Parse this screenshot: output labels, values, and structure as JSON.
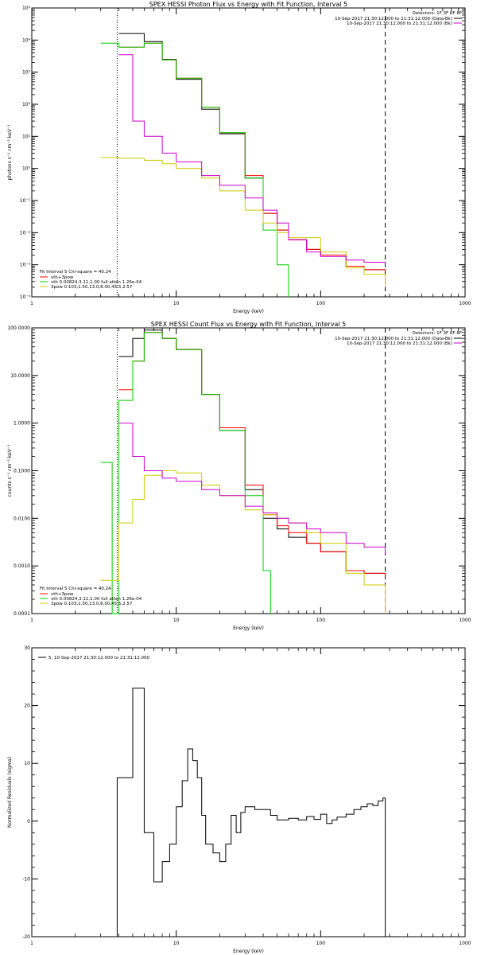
{
  "chart_data": [
    {
      "type": "line",
      "title": "SPEX HESSI Photon Flux vs Energy with Fit Function, Interval 5",
      "xlabel": "Energy (keV)",
      "ylabel": "photons s⁻¹ cm⁻² keV⁻¹",
      "xscale": "log",
      "yscale": "log",
      "xlim": [
        1,
        1000
      ],
      "ylim": [
        0.0001,
        100000
      ],
      "x_tick_labels": [
        "1",
        "10",
        "100",
        "1000"
      ],
      "y_ticks": [
        0.0001,
        0.001,
        0.01,
        0.1,
        1,
        10,
        100,
        1000,
        10000,
        100000
      ],
      "y_tick_labels": [
        "10⁻⁴",
        "10⁻³",
        "10⁻²",
        "10⁻¹",
        "10⁰",
        "10¹",
        "10²",
        "10³",
        "10⁴",
        "10⁵"
      ],
      "vlines": [
        {
          "x": 3.9,
          "style": "dotted"
        },
        {
          "x": 280,
          "style": "dashed"
        }
      ],
      "legend_top": {
        "header": "Detectors: 1F 3F 6F 8F",
        "entries": [
          {
            "label": "10-Sep-2017 21:30:12.000 to 21:31:12.000 (Data-Bk)",
            "color": "#000000"
          },
          {
            "label": "10-Sep-2017 21:30:12.000 to 21:31:12.000 (Bk)",
            "color": "#cc00cc"
          }
        ]
      },
      "legend_bottom": {
        "header": "Fit Interval 5   Chi-square = 40.24",
        "entries": [
          {
            "label": "vth+3pow",
            "color": "#ff0000"
          },
          {
            "label": "vth 0.00824,3.11,1.00  full atten 1.26e-04",
            "color": "#00cc00"
          },
          {
            "label": "3pow 0.103,1.50,13.0,8.00,45.5,2.57",
            "color": "#cccc00"
          }
        ]
      },
      "series": [
        {
          "color": "#000000",
          "points": [
            [
              4,
              16000
            ],
            [
              6,
              9000
            ],
            [
              8,
              2500
            ],
            [
              10,
              600
            ],
            [
              15,
              70
            ],
            [
              20,
              12
            ],
            [
              30,
              0.5
            ],
            [
              40,
              0.04
            ],
            [
              50,
              0.012
            ],
            [
              60,
              0.006
            ],
            [
              80,
              0.003
            ],
            [
              100,
              0.002
            ],
            [
              150,
              0.0009
            ],
            [
              200,
              0.0007
            ],
            [
              280,
              0.0006
            ]
          ]
        },
        {
          "color": "#ff0000",
          "points": [
            [
              4,
              6000
            ],
            [
              6,
              8000
            ],
            [
              8,
              2400
            ],
            [
              10,
              650
            ],
            [
              15,
              80
            ],
            [
              20,
              13
            ],
            [
              30,
              0.6
            ],
            [
              40,
              0.04
            ],
            [
              50,
              0.012
            ],
            [
              60,
              0.006
            ],
            [
              80,
              0.003
            ],
            [
              100,
              0.002
            ],
            [
              150,
              0.0009
            ],
            [
              200,
              0.0007
            ],
            [
              280,
              0.0006
            ]
          ]
        },
        {
          "color": "#00cc00",
          "points": [
            [
              3,
              8000
            ],
            [
              4,
              6000
            ],
            [
              6,
              8000
            ],
            [
              8,
              2400
            ],
            [
              10,
              650
            ],
            [
              15,
              80
            ],
            [
              20,
              13
            ],
            [
              30,
              0.5
            ],
            [
              40,
              0.012
            ],
            [
              50,
              0.001
            ],
            [
              60,
              0.0001
            ]
          ]
        },
        {
          "color": "#cccc00",
          "points": [
            [
              3,
              2.2
            ],
            [
              4,
              2.1
            ],
            [
              6,
              1.8
            ],
            [
              8,
              1.4
            ],
            [
              10,
              1.0
            ],
            [
              15,
              0.5
            ],
            [
              20,
              0.2
            ],
            [
              30,
              0.05
            ],
            [
              40,
              0.02
            ],
            [
              50,
              0.01
            ],
            [
              60,
              0.007
            ],
            [
              100,
              0.0025
            ],
            [
              150,
              0.0008
            ],
            [
              200,
              0.0005
            ],
            [
              280,
              0.0002
            ]
          ]
        },
        {
          "color": "#cc00cc",
          "points": [
            [
              4,
              3500
            ],
            [
              5,
              30
            ],
            [
              6,
              10
            ],
            [
              8,
              3
            ],
            [
              10,
              1.6
            ],
            [
              15,
              0.6
            ],
            [
              20,
              0.3
            ],
            [
              30,
              0.12
            ],
            [
              40,
              0.05
            ],
            [
              50,
              0.02
            ],
            [
              60,
              0.006
            ],
            [
              80,
              0.0025
            ],
            [
              100,
              0.0018
            ],
            [
              150,
              0.0014
            ],
            [
              200,
              0.0012
            ],
            [
              280,
              0.001
            ]
          ]
        }
      ]
    },
    {
      "type": "line",
      "title": "SPEX HESSI Count Flux vs Energy with Fit Function, Interval 5",
      "xlabel": "Energy (keV)",
      "ylabel": "counts s⁻¹ cm⁻² keV⁻¹",
      "xscale": "log",
      "yscale": "log",
      "xlim": [
        1,
        1000
      ],
      "ylim": [
        0.0001,
        100
      ],
      "x_tick_labels": [
        "1",
        "10",
        "100",
        "1000"
      ],
      "y_ticks": [
        0.0001,
        0.001,
        0.01,
        0.1,
        1,
        10,
        100
      ],
      "y_tick_labels": [
        "0.0001",
        "0.0010",
        "0.0100",
        "0.1000",
        "1.0000",
        "10.0000",
        "100.0000"
      ],
      "vlines": [
        {
          "x": 3.9,
          "style": "dotted"
        },
        {
          "x": 280,
          "style": "dashed"
        }
      ],
      "legend_top": {
        "header": "Detectors: 1F 3F 6F 8F",
        "entries": [
          {
            "label": "10-Sep-2017 21:30:12.000 to 21:31:12.000 (Data-Bk)",
            "color": "#000000"
          },
          {
            "label": "10-Sep-2017 21:30:12.000 to 21:31:12.000 (Bk)",
            "color": "#cc00cc"
          }
        ]
      },
      "legend_bottom": {
        "header": "Fit Interval 5   Chi-square = 40.24",
        "entries": [
          {
            "label": "vth+3pow",
            "color": "#ff0000"
          },
          {
            "label": "vth 0.00824,3.11,1.00  full atten 1.26e-04",
            "color": "#00cc00"
          },
          {
            "label": "3pow 0.103,1.50,13.0,8.00,45.5,2.57",
            "color": "#cccc00"
          }
        ]
      },
      "series": [
        {
          "color": "#000000",
          "points": [
            [
              4,
              25
            ],
            [
              5,
              60
            ],
            [
              6,
              90
            ],
            [
              8,
              60
            ],
            [
              10,
              35
            ],
            [
              15,
              4
            ],
            [
              20,
              0.7
            ],
            [
              30,
              0.04
            ],
            [
              40,
              0.01
            ],
            [
              50,
              0.006
            ],
            [
              60,
              0.004
            ],
            [
              80,
              0.003
            ],
            [
              100,
              0.002
            ],
            [
              150,
              0.0008
            ],
            [
              200,
              0.0007
            ],
            [
              280,
              0.0006
            ]
          ]
        },
        {
          "color": "#ff0000",
          "points": [
            [
              4,
              5
            ],
            [
              5,
              20
            ],
            [
              6,
              80
            ],
            [
              8,
              60
            ],
            [
              10,
              35
            ],
            [
              15,
              4
            ],
            [
              20,
              0.8
            ],
            [
              30,
              0.05
            ],
            [
              40,
              0.012
            ],
            [
              50,
              0.007
            ],
            [
              60,
              0.005
            ],
            [
              80,
              0.003
            ],
            [
              100,
              0.002
            ],
            [
              150,
              0.0008
            ],
            [
              200,
              0.0007
            ],
            [
              280,
              0.0006
            ]
          ]
        },
        {
          "color": "#00cc00",
          "points": [
            [
              3,
              0.15
            ],
            [
              3.6,
              0.0001
            ],
            [
              4,
              3
            ],
            [
              5,
              20
            ],
            [
              6,
              80
            ],
            [
              8,
              60
            ],
            [
              10,
              35
            ],
            [
              15,
              4
            ],
            [
              20,
              0.7
            ],
            [
              30,
              0.03
            ],
            [
              40,
              0.0008
            ],
            [
              45,
              0.0001
            ]
          ]
        },
        {
          "color": "#cccc00",
          "points": [
            [
              3,
              0.0005
            ],
            [
              4,
              0.008
            ],
            [
              5,
              0.025
            ],
            [
              6,
              0.08
            ],
            [
              8,
              0.1
            ],
            [
              10,
              0.09
            ],
            [
              15,
              0.05
            ],
            [
              20,
              0.03
            ],
            [
              30,
              0.015
            ],
            [
              40,
              0.012
            ],
            [
              50,
              0.01
            ],
            [
              60,
              0.008
            ],
            [
              80,
              0.005
            ],
            [
              100,
              0.003
            ],
            [
              150,
              0.0007
            ],
            [
              200,
              0.0004
            ],
            [
              280,
              0.0001
            ]
          ]
        },
        {
          "color": "#cc00cc",
          "points": [
            [
              4,
              1
            ],
            [
              5,
              0.2
            ],
            [
              6,
              0.1
            ],
            [
              8,
              0.07
            ],
            [
              10,
              0.06
            ],
            [
              15,
              0.04
            ],
            [
              20,
              0.03
            ],
            [
              30,
              0.018
            ],
            [
              40,
              0.013
            ],
            [
              50,
              0.01
            ],
            [
              60,
              0.008
            ],
            [
              80,
              0.006
            ],
            [
              100,
              0.005
            ],
            [
              150,
              0.003
            ],
            [
              200,
              0.0025
            ],
            [
              280,
              0.0018
            ]
          ]
        }
      ]
    },
    {
      "type": "line",
      "title": "",
      "xlabel": "Energy (keV)",
      "ylabel": "Normalized Residuals (sigma)",
      "xscale": "log",
      "yscale": "linear",
      "xlim": [
        1,
        1000
      ],
      "ylim": [
        -20,
        30
      ],
      "x_tick_labels": [
        "1",
        "10",
        "100",
        "1000"
      ],
      "y_ticks": [
        -20,
        -10,
        0,
        10,
        20,
        30
      ],
      "y_tick_labels": [
        "-20",
        "-10",
        "0",
        "10",
        "20",
        "30"
      ],
      "legend_top": {
        "header": "",
        "entries": [
          {
            "label": "5, 10-Sep-2017 21:30:12.000 to 21:31:12.000",
            "color": "#000000"
          }
        ]
      },
      "series": [
        {
          "color": "#000000",
          "points": [
            [
              3.9,
              -20
            ],
            [
              3.9,
              7.5
            ],
            [
              4.5,
              7.5
            ],
            [
              5,
              23
            ],
            [
              5.5,
              23
            ],
            [
              6,
              -2
            ],
            [
              6.5,
              -2
            ],
            [
              7,
              -10.5
            ],
            [
              7.5,
              -10.5
            ],
            [
              8,
              -7
            ],
            [
              9,
              -4
            ],
            [
              10,
              2.5
            ],
            [
              11,
              7
            ],
            [
              12,
              12.5
            ],
            [
              13,
              10.5
            ],
            [
              14,
              7.5
            ],
            [
              15,
              1
            ],
            [
              16,
              -4
            ],
            [
              18,
              -5.5
            ],
            [
              20,
              -7
            ],
            [
              22,
              -4
            ],
            [
              24,
              1
            ],
            [
              26,
              -2
            ],
            [
              28,
              1.5
            ],
            [
              30,
              2.5
            ],
            [
              35,
              2
            ],
            [
              40,
              2
            ],
            [
              45,
              1
            ],
            [
              50,
              0.2
            ],
            [
              60,
              0.5
            ],
            [
              70,
              0.2
            ],
            [
              80,
              0.8
            ],
            [
              90,
              0.3
            ],
            [
              100,
              1.2
            ],
            [
              110,
              -0.4
            ],
            [
              120,
              0.2
            ],
            [
              130,
              0.7
            ],
            [
              150,
              1.2
            ],
            [
              170,
              2
            ],
            [
              190,
              2.5
            ],
            [
              210,
              3
            ],
            [
              230,
              2.7
            ],
            [
              250,
              3.5
            ],
            [
              270,
              4
            ],
            [
              280,
              -20
            ]
          ]
        }
      ]
    }
  ]
}
